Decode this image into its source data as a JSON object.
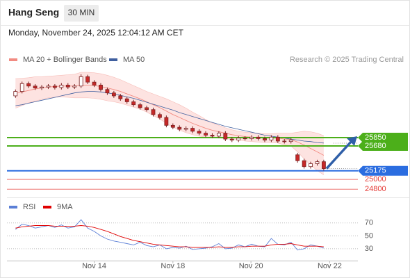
{
  "header": {
    "title": "Hang Seng",
    "interval": "30 MIN",
    "timestamp": "Monday, November 24, 2025 12:04:12 AM CET"
  },
  "chart_data": [
    {
      "type": "candlestick",
      "credit": "Research © 2025 Trading Central",
      "xlim": [
        -1.3,
        52.2
      ],
      "ylim": [
        24690,
        27350
      ],
      "up_color": "#ffffff",
      "down_color": "#c62828",
      "outline_color": "#7a1f1f",
      "open": [
        26700,
        26790,
        26950,
        26900,
        26860,
        26880,
        26900,
        26870,
        26920,
        26880,
        26900,
        27090,
        26980,
        26920,
        26830,
        26760,
        26700,
        26640,
        26580,
        26520,
        26460,
        26420,
        26320,
        26260,
        26100,
        26060,
        26020,
        26040,
        25980,
        25940,
        25900,
        25880,
        25940,
        25820,
        25800,
        25840,
        25830,
        25860,
        25830,
        25800,
        25860,
        25780,
        25770,
        25500,
        25380,
        25260,
        25320,
        25360
      ],
      "high": [
        26830,
        26990,
        26990,
        26940,
        26920,
        26940,
        26940,
        26960,
        26960,
        26940,
        27140,
        27130,
        27020,
        26960,
        26870,
        26800,
        26740,
        26680,
        26620,
        26560,
        26500,
        26460,
        26360,
        26300,
        26140,
        26100,
        26080,
        26080,
        26020,
        25980,
        25940,
        25980,
        25980,
        25860,
        25880,
        25880,
        25900,
        25900,
        25870,
        25900,
        25900,
        25820,
        25840,
        25540,
        25420,
        25360,
        25400,
        25400
      ],
      "low": [
        26660,
        26750,
        26860,
        26820,
        26820,
        26840,
        26830,
        26830,
        26840,
        26840,
        26860,
        26940,
        26880,
        26790,
        26720,
        26660,
        26600,
        26540,
        26480,
        26420,
        26380,
        26280,
        26220,
        26060,
        26020,
        25980,
        25980,
        25940,
        25900,
        25860,
        25840,
        25840,
        25780,
        25760,
        25760,
        25790,
        25790,
        25790,
        25760,
        25760,
        25740,
        25730,
        25730,
        25340,
        25220,
        25220,
        25280,
        25180
      ],
      "close": [
        26790,
        26950,
        26900,
        26860,
        26880,
        26900,
        26870,
        26920,
        26880,
        26900,
        27090,
        26980,
        26920,
        26830,
        26760,
        26700,
        26640,
        26580,
        26520,
        26460,
        26420,
        26320,
        26260,
        26100,
        26060,
        26020,
        26040,
        25980,
        25940,
        25900,
        25880,
        25940,
        25820,
        25800,
        25840,
        25830,
        25860,
        25830,
        25800,
        25860,
        25780,
        25770,
        25800,
        25380,
        25260,
        25320,
        25360,
        25220
      ],
      "bands": {
        "name": "MA 20 + Bollinger Bands",
        "color": "#f28b82",
        "fill": "#fde3e1",
        "upper": [
          27050,
          27060,
          27070,
          27090,
          27090,
          27100,
          27110,
          27120,
          27130,
          27140,
          27180,
          27180,
          27170,
          27150,
          27120,
          27080,
          27030,
          26970,
          26910,
          26850,
          26790,
          26740,
          26690,
          26640,
          26580,
          26520,
          26450,
          26370,
          26300,
          26220,
          26150,
          26100,
          26050,
          26010,
          25980,
          25960,
          25950,
          25940,
          25930,
          25930,
          25940,
          25940,
          25940,
          25960,
          25980,
          25970,
          25940,
          25890
        ],
        "middle": [
          26750,
          26780,
          26810,
          26840,
          26860,
          26880,
          26890,
          26900,
          26900,
          26900,
          26920,
          26920,
          26910,
          26890,
          26860,
          26830,
          26790,
          26740,
          26690,
          26640,
          26580,
          26520,
          26460,
          26390,
          26320,
          26260,
          26200,
          26140,
          26090,
          26040,
          26000,
          25970,
          25940,
          25910,
          25890,
          25870,
          25860,
          25850,
          25840,
          25840,
          25840,
          25820,
          25810,
          25760,
          25700,
          25630,
          25560,
          25490
        ],
        "lower": [
          26450,
          26500,
          26560,
          26590,
          26630,
          26660,
          26670,
          26680,
          26670,
          26660,
          26660,
          26660,
          26650,
          26630,
          26600,
          26580,
          26550,
          26510,
          26470,
          26430,
          26370,
          26300,
          26230,
          26140,
          26060,
          26000,
          25950,
          25910,
          25880,
          25860,
          25850,
          25840,
          25830,
          25810,
          25800,
          25780,
          25770,
          25760,
          25750,
          25750,
          25740,
          25700,
          25680,
          25560,
          25420,
          25290,
          25180,
          25090
        ]
      },
      "series": [
        {
          "name": "MA 50",
          "color": "#3f5f9f",
          "values": [
            26500,
            26520,
            26550,
            26580,
            26610,
            26640,
            26670,
            26700,
            26730,
            26760,
            26780,
            26790,
            26790,
            26780,
            26760,
            26740,
            26710,
            26680,
            26650,
            26610,
            26570,
            26530,
            26490,
            26450,
            26410,
            26360,
            26320,
            26280,
            26240,
            26200,
            26160,
            26120,
            26080,
            26050,
            26020,
            25990,
            25960,
            25930,
            25900,
            25880,
            25860,
            25840,
            25820,
            25800,
            25780,
            25770,
            25750,
            25740
          ]
        }
      ],
      "levels": [
        {
          "value": 25850,
          "color": "#4caf1a",
          "label_style": "box"
        },
        {
          "value": 25680,
          "color": "#4caf1a",
          "label_style": "box"
        },
        {
          "value": 25175,
          "color": "#2b6de0",
          "label_style": "box"
        },
        {
          "value": 25000,
          "color": "#e53935",
          "label_style": "text"
        },
        {
          "value": 24800,
          "color": "#e53935",
          "label_style": "text"
        }
      ]
    },
    {
      "type": "line",
      "xlim": [
        -1.3,
        52.2
      ],
      "ylim": [
        17,
        87
      ],
      "yticks": [
        70,
        50,
        30
      ],
      "xticks": [
        {
          "value": 12,
          "label": "Nov 14"
        },
        {
          "value": 24,
          "label": "Nov 18"
        },
        {
          "value": 35.9,
          "label": "Nov 20"
        },
        {
          "value": 47.9,
          "label": "Nov 22"
        }
      ],
      "series": [
        {
          "name": "RSI",
          "color": "#5b7fd6",
          "values": [
            60,
            68,
            66,
            62,
            64,
            66,
            63,
            67,
            62,
            64,
            75,
            62,
            57,
            50,
            45,
            42,
            40,
            38,
            36,
            40,
            35,
            33,
            36,
            30,
            32,
            31,
            34,
            29,
            30,
            31,
            33,
            38,
            30,
            31,
            36,
            33,
            37,
            34,
            33,
            46,
            37,
            36,
            40,
            28,
            30,
            36,
            34,
            31
          ]
        },
        {
          "name": "9MA",
          "color": "#e00000",
          "values": [
            62,
            64,
            65,
            66,
            66,
            66,
            65,
            65,
            65,
            65,
            66,
            65,
            63,
            60,
            57,
            53,
            49,
            46,
            43,
            41,
            39,
            37,
            36,
            35,
            34,
            33,
            33,
            32,
            32,
            32,
            32,
            33,
            32,
            32,
            33,
            33,
            34,
            34,
            34,
            36,
            37,
            37,
            38,
            36,
            34,
            34,
            34,
            33
          ]
        }
      ]
    }
  ]
}
